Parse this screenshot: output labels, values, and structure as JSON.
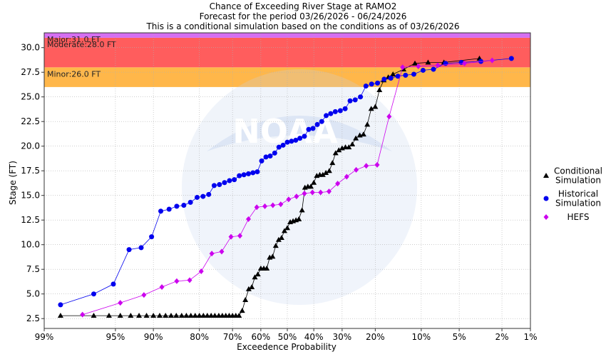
{
  "chart_data": {
    "type": "scatter",
    "title_lines": [
      "Chance of Exceeding River Stage at RAMO2",
      "Forecast for the period 03/26/2026 - 06/24/2026",
      "This is a conditional simulation based on the conditions as of 03/26/2026"
    ],
    "xlabel": "Exceedence Probability",
    "ylabel": "Stage (FT)",
    "x_scale": "normal-probability",
    "x_reversed": true,
    "xlim": [
      99,
      1
    ],
    "ylim": [
      1.5,
      31.5
    ],
    "x_ticks": [
      {
        "value": 99,
        "label": "99%"
      },
      {
        "value": 95,
        "label": "95%"
      },
      {
        "value": 90,
        "label": "90%"
      },
      {
        "value": 80,
        "label": "80%"
      },
      {
        "value": 70,
        "label": "70%"
      },
      {
        "value": 60,
        "label": "60%"
      },
      {
        "value": 50,
        "label": "50%"
      },
      {
        "value": 40,
        "label": "40%"
      },
      {
        "value": 30,
        "label": "30%"
      },
      {
        "value": 20,
        "label": "20%"
      },
      {
        "value": 10,
        "label": "10%"
      },
      {
        "value": 5,
        "label": "5%"
      },
      {
        "value": 2,
        "label": "2%"
      },
      {
        "value": 1,
        "label": "1%"
      }
    ],
    "y_ticks": [
      2.5,
      5.0,
      7.5,
      10.0,
      12.5,
      15.0,
      17.5,
      20.0,
      22.5,
      25.0,
      27.5,
      30.0
    ],
    "y_tick_labels": [
      "2.5",
      "5.0",
      "7.5",
      "10.0",
      "12.5",
      "15.0",
      "17.5",
      "20.0",
      "22.5",
      "25.0",
      "27.5",
      "30.0"
    ],
    "grid": true,
    "flood_bands": [
      {
        "label": "Minor:26.0 FT",
        "from": 26.0,
        "to": 28.0,
        "color": "#ffb74a"
      },
      {
        "label": "Moderate:28.0 FT",
        "from": 28.0,
        "to": 31.0,
        "color": "#ff5d5d"
      },
      {
        "label": "Major:31.0 FT",
        "from": 31.0,
        "to": 31.5,
        "color": "#d56ff2"
      }
    ],
    "legend_position": "right",
    "series": [
      {
        "name": "Conditional Simulation",
        "marker": "triangle",
        "color": "#000000",
        "points": [
          [
            98.5,
            2.8
          ],
          [
            96.8,
            2.8
          ],
          [
            95.6,
            2.8
          ],
          [
            94.5,
            2.8
          ],
          [
            93.3,
            2.8
          ],
          [
            92.2,
            2.8
          ],
          [
            91.1,
            2.8
          ],
          [
            90.0,
            2.8
          ],
          [
            88.9,
            2.8
          ],
          [
            87.8,
            2.8
          ],
          [
            86.7,
            2.8
          ],
          [
            85.6,
            2.8
          ],
          [
            84.4,
            2.8
          ],
          [
            83.3,
            2.8
          ],
          [
            82.2,
            2.8
          ],
          [
            81.1,
            2.8
          ],
          [
            80.0,
            2.8
          ],
          [
            78.9,
            2.8
          ],
          [
            77.8,
            2.8
          ],
          [
            76.7,
            2.8
          ],
          [
            75.6,
            2.8
          ],
          [
            74.4,
            2.8
          ],
          [
            73.3,
            2.8
          ],
          [
            72.2,
            2.8
          ],
          [
            71.1,
            2.8
          ],
          [
            70.0,
            2.8
          ],
          [
            68.9,
            2.8
          ],
          [
            67.8,
            2.8
          ],
          [
            66.7,
            3.3
          ],
          [
            65.6,
            4.4
          ],
          [
            64.4,
            5.5
          ],
          [
            63.3,
            5.7
          ],
          [
            62.2,
            6.7
          ],
          [
            61.1,
            7.0
          ],
          [
            60.0,
            7.6
          ],
          [
            58.9,
            7.6
          ],
          [
            57.8,
            7.6
          ],
          [
            56.7,
            8.7
          ],
          [
            55.6,
            8.8
          ],
          [
            54.4,
            9.9
          ],
          [
            53.3,
            10.5
          ],
          [
            52.2,
            10.7
          ],
          [
            51.1,
            11.4
          ],
          [
            50.0,
            11.7
          ],
          [
            48.9,
            12.3
          ],
          [
            47.8,
            12.4
          ],
          [
            46.7,
            12.5
          ],
          [
            45.6,
            12.6
          ],
          [
            44.4,
            13.5
          ],
          [
            43.3,
            15.8
          ],
          [
            42.2,
            15.9
          ],
          [
            41.1,
            15.9
          ],
          [
            40.0,
            16.3
          ],
          [
            38.9,
            17.0
          ],
          [
            37.8,
            17.1
          ],
          [
            36.7,
            17.1
          ],
          [
            35.6,
            17.3
          ],
          [
            34.4,
            17.5
          ],
          [
            33.3,
            18.3
          ],
          [
            32.2,
            19.3
          ],
          [
            31.1,
            19.6
          ],
          [
            30.0,
            19.8
          ],
          [
            28.9,
            19.9
          ],
          [
            27.8,
            19.9
          ],
          [
            26.7,
            20.2
          ],
          [
            25.6,
            20.8
          ],
          [
            24.4,
            21.1
          ],
          [
            23.3,
            21.2
          ],
          [
            22.2,
            22.2
          ],
          [
            21.1,
            23.8
          ],
          [
            20.0,
            24.0
          ],
          [
            18.9,
            25.7
          ],
          [
            17.8,
            26.7
          ],
          [
            16.7,
            27.0
          ],
          [
            15.6,
            27.3
          ],
          [
            13.3,
            27.8
          ],
          [
            11.1,
            28.4
          ],
          [
            8.9,
            28.5
          ],
          [
            6.7,
            28.5
          ],
          [
            3.3,
            28.9
          ]
        ]
      },
      {
        "name": "Historical Simulation",
        "marker": "circle",
        "color": "#0000ee",
        "points": [
          [
            98.5,
            3.9
          ],
          [
            96.8,
            5.0
          ],
          [
            95.2,
            6.0
          ],
          [
            93.5,
            9.5
          ],
          [
            91.9,
            9.7
          ],
          [
            90.3,
            10.8
          ],
          [
            88.7,
            13.4
          ],
          [
            87.1,
            13.6
          ],
          [
            85.5,
            13.9
          ],
          [
            83.9,
            14.0
          ],
          [
            82.3,
            14.3
          ],
          [
            80.6,
            14.8
          ],
          [
            79.0,
            14.9
          ],
          [
            77.4,
            15.1
          ],
          [
            75.8,
            16.0
          ],
          [
            74.2,
            16.1
          ],
          [
            72.6,
            16.3
          ],
          [
            71.0,
            16.5
          ],
          [
            69.4,
            16.6
          ],
          [
            67.7,
            17.0
          ],
          [
            66.1,
            17.1
          ],
          [
            64.5,
            17.2
          ],
          [
            62.9,
            17.3
          ],
          [
            61.3,
            17.4
          ],
          [
            59.7,
            18.5
          ],
          [
            58.1,
            18.9
          ],
          [
            56.5,
            19.0
          ],
          [
            54.8,
            19.3
          ],
          [
            53.2,
            19.9
          ],
          [
            51.6,
            20.1
          ],
          [
            50.0,
            20.4
          ],
          [
            48.4,
            20.5
          ],
          [
            46.8,
            20.6
          ],
          [
            45.2,
            20.8
          ],
          [
            43.5,
            21.0
          ],
          [
            41.9,
            21.7
          ],
          [
            40.3,
            21.8
          ],
          [
            38.7,
            22.2
          ],
          [
            37.1,
            22.5
          ],
          [
            35.5,
            23.1
          ],
          [
            33.9,
            23.3
          ],
          [
            32.3,
            23.5
          ],
          [
            30.6,
            23.6
          ],
          [
            29.0,
            23.8
          ],
          [
            27.4,
            24.6
          ],
          [
            25.8,
            24.7
          ],
          [
            24.2,
            25.0
          ],
          [
            22.6,
            26.1
          ],
          [
            21.0,
            26.3
          ],
          [
            19.4,
            26.4
          ],
          [
            17.7,
            26.8
          ],
          [
            16.1,
            26.9
          ],
          [
            14.5,
            27.1
          ],
          [
            12.9,
            27.2
          ],
          [
            11.3,
            27.3
          ],
          [
            9.7,
            27.7
          ],
          [
            8.1,
            27.8
          ],
          [
            6.5,
            28.4
          ],
          [
            4.8,
            28.5
          ],
          [
            3.2,
            28.6
          ],
          [
            1.6,
            28.9
          ]
        ]
      },
      {
        "name": "HEFS",
        "marker": "diamond",
        "color": "#cc00ee",
        "points": [
          [
            97.5,
            2.9
          ],
          [
            94.5,
            4.1
          ],
          [
            91.5,
            4.9
          ],
          [
            88.5,
            5.7
          ],
          [
            85.5,
            6.3
          ],
          [
            82.5,
            6.4
          ],
          [
            79.5,
            7.3
          ],
          [
            76.5,
            9.1
          ],
          [
            73.5,
            9.3
          ],
          [
            70.5,
            10.8
          ],
          [
            67.5,
            10.9
          ],
          [
            64.5,
            12.6
          ],
          [
            61.5,
            13.8
          ],
          [
            58.5,
            13.9
          ],
          [
            55.5,
            14.0
          ],
          [
            52.5,
            14.1
          ],
          [
            49.5,
            14.6
          ],
          [
            46.5,
            14.9
          ],
          [
            43.5,
            15.2
          ],
          [
            40.5,
            15.3
          ],
          [
            37.5,
            15.3
          ],
          [
            34.5,
            15.4
          ],
          [
            31.5,
            16.2
          ],
          [
            28.5,
            16.9
          ],
          [
            25.5,
            17.6
          ],
          [
            22.5,
            18.0
          ],
          [
            19.5,
            18.1
          ],
          [
            16.5,
            23.0
          ],
          [
            13.5,
            28.0
          ],
          [
            10.5,
            28.1
          ],
          [
            7.5,
            28.2
          ],
          [
            4.5,
            28.4
          ],
          [
            2.5,
            28.7
          ]
        ]
      }
    ],
    "watermark": {
      "text": "NOAA"
    }
  }
}
